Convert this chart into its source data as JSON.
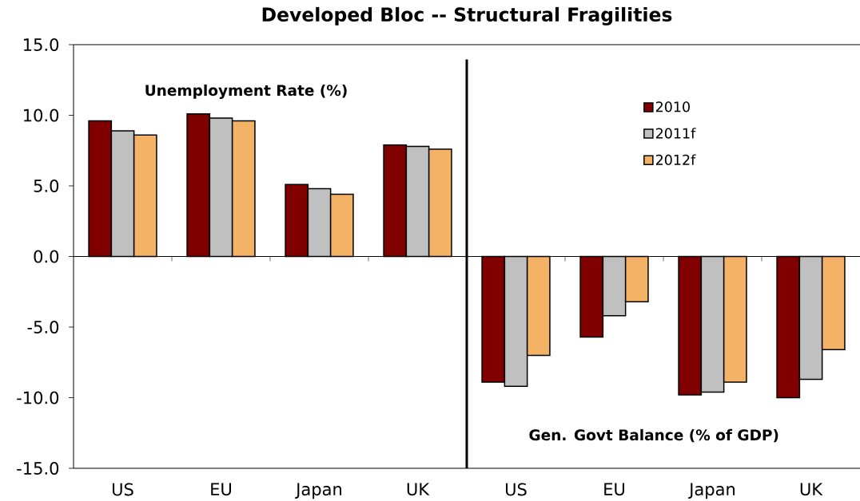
{
  "chart_data": [
    {
      "type": "bar",
      "title": "Developed Bloc -- Structural Fragilities",
      "categories": [
        "US",
        "EU",
        "Japan",
        "UK"
      ],
      "series": [
        {
          "color": "#800000",
          "values": [
            9.6,
            10.1,
            5.1,
            7.9
          ]
        },
        {
          "color": "#c0c0c0",
          "values": [
            8.9,
            9.8,
            4.8,
            7.8
          ]
        },
        {
          "color": "#f3b266",
          "values": [
            8.6,
            9.6,
            4.4,
            7.6
          ]
        }
      ],
      "ylim": [
        -15,
        15
      ],
      "yticks": [
        {
          "value": -15,
          "label": "-15.0"
        },
        {
          "value": -10,
          "label": "-10.0"
        },
        {
          "value": -5,
          "label": "-5.0"
        },
        {
          "value": 0,
          "label": "0.0"
        },
        {
          "value": 5,
          "label": "5.0"
        },
        {
          "value": 10,
          "label": "10.0"
        },
        {
          "value": 15,
          "label": "15.0"
        }
      ],
      "ref_lines": [
        {
          "axis": "y",
          "value": 0,
          "color": "#000000"
        }
      ],
      "annotations": [
        "Unemployment Rate (%)"
      ],
      "legend": false,
      "grid": false
    },
    {
      "type": "bar",
      "categories": [
        "US",
        "EU",
        "Japan",
        "UK"
      ],
      "series": [
        {
          "name": "2010",
          "color": "#800000",
          "values": [
            -8.9,
            -5.7,
            -9.8,
            -10.0
          ]
        },
        {
          "name": "2011f",
          "color": "#c0c0c0",
          "values": [
            -9.2,
            -4.2,
            -9.6,
            -8.7
          ]
        },
        {
          "name": "2012f",
          "color": "#f3b266",
          "values": [
            -7.0,
            -3.2,
            -8.9,
            -6.6
          ]
        }
      ],
      "ylim": [
        -15,
        15
      ],
      "tick_labels": "x",
      "ref_lines": [
        {
          "axis": "y",
          "value": 0,
          "color": "#000000"
        }
      ],
      "annotations": [
        "Gen. Govt Balance (% of GDP)"
      ],
      "legend": "top",
      "grid": false
    }
  ]
}
